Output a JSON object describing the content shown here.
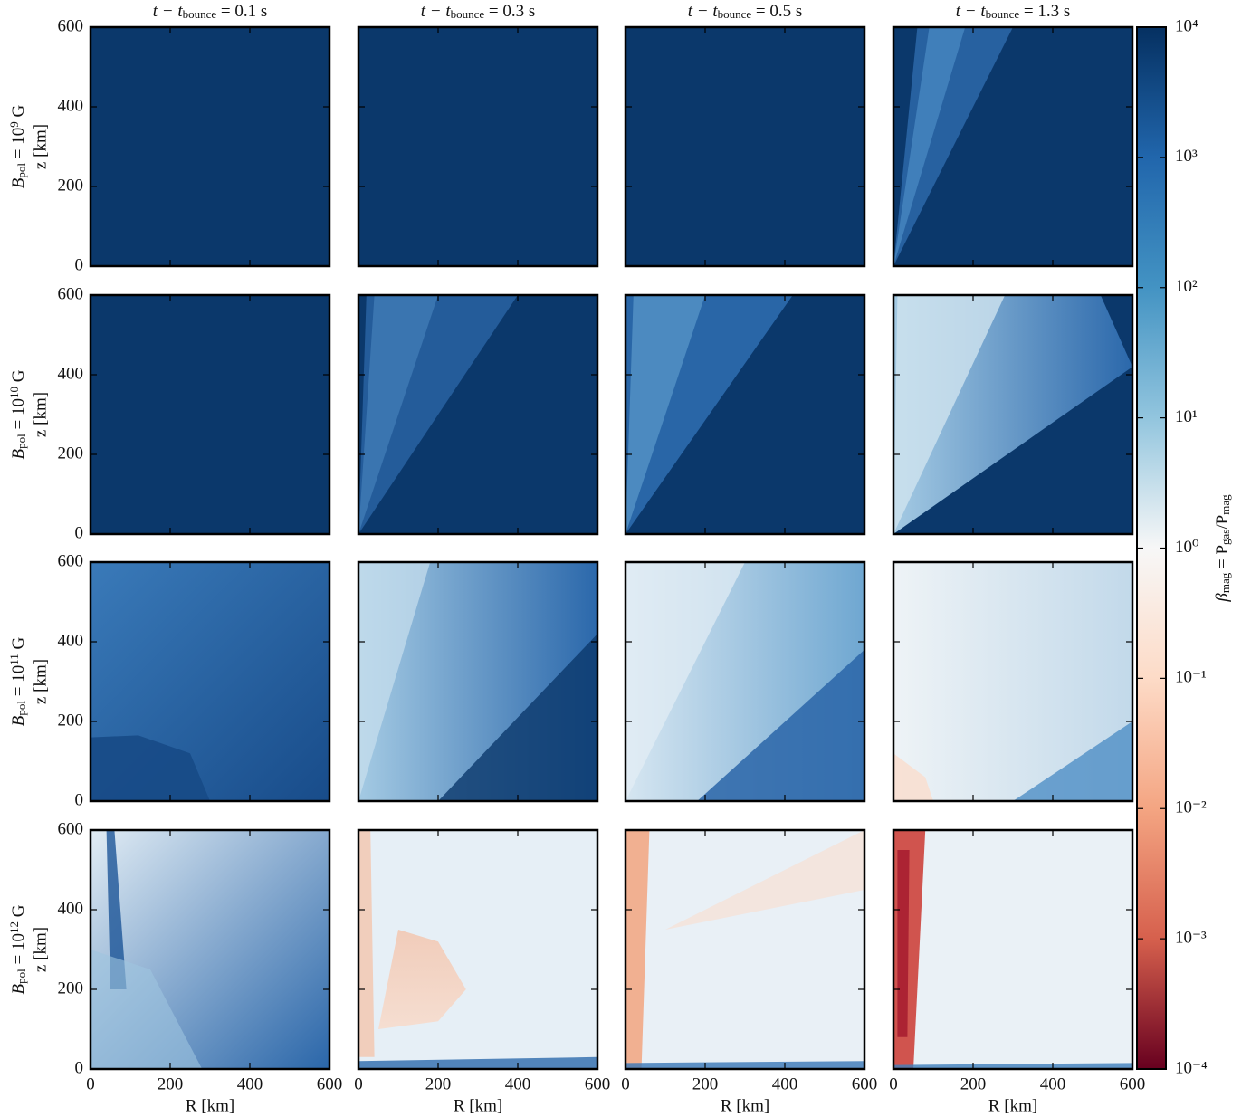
{
  "chart_data": {
    "type": "heatmap",
    "column_titles": [
      {
        "main": "t − t",
        "sub": "bounce",
        "tail": " = 0.1 s"
      },
      {
        "main": "t − t",
        "sub": "bounce",
        "tail": " = 0.3 s"
      },
      {
        "main": "t − t",
        "sub": "bounce",
        "tail": " = 0.5 s"
      },
      {
        "main": "t − t",
        "sub": "bounce",
        "tail": " = 1.3 s"
      }
    ],
    "row_labels": [
      {
        "main": "B",
        "sub": "pol",
        "mid": " = 10",
        "sup": "9",
        "tail": " G"
      },
      {
        "main": "B",
        "sub": "pol",
        "mid": " = 10",
        "sup": "10",
        "tail": " G"
      },
      {
        "main": "B",
        "sub": "pol",
        "mid": " = 10",
        "sup": "11",
        "tail": " G"
      },
      {
        "main": "B",
        "sub": "pol",
        "mid": " = 10",
        "sup": "12",
        "tail": " G"
      }
    ],
    "xlabel": "R [km]",
    "ylabel": "z [km]",
    "xlim": [
      0,
      600
    ],
    "ylim": [
      0,
      600
    ],
    "xticks": [
      0,
      200,
      400,
      600
    ],
    "yticks": [
      0,
      200,
      400,
      600
    ],
    "colorbar": {
      "label": {
        "main": "β",
        "sub": "mag",
        "mid": " = P",
        "sub2": "gas",
        "mid2": "/P",
        "sub3": "mag"
      },
      "log": true,
      "colormap": "RdBu",
      "clim": [
        0.0001,
        10000
      ],
      "ticks": [
        {
          "value": 10000,
          "label": "10⁴"
        },
        {
          "value": 1000,
          "label": "10³"
        },
        {
          "value": 100,
          "label": "10²"
        },
        {
          "value": 10,
          "label": "10¹"
        },
        {
          "value": 1,
          "label": "10⁰"
        },
        {
          "value": 0.1,
          "label": "10⁻¹"
        },
        {
          "value": 0.01,
          "label": "10⁻²"
        },
        {
          "value": 0.001,
          "label": "10⁻³"
        },
        {
          "value": 0.0001,
          "label": "10⁻⁴"
        }
      ]
    }
  }
}
